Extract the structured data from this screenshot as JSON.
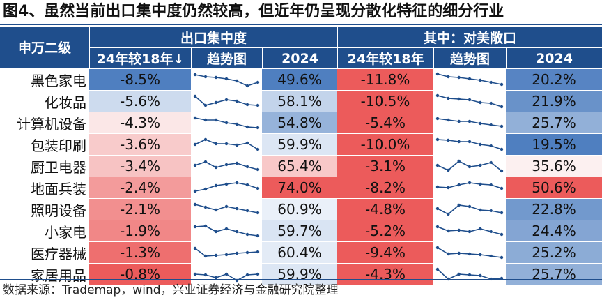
{
  "title": "图4、虽然当前出口集中度仍然较高，但近年仍呈现分散化特征的细分行业",
  "source": "数据来源：Trademap，wind，兴业证券经济与金融研究院整理",
  "header": {
    "corner": "申万二级",
    "group1": "出口集中度",
    "group2": "其中：对美敞口",
    "col_change1": "24年较18年↓",
    "col_trend1": "趋势图",
    "col_2024_1": "2024",
    "col_change2": "24年较18年",
    "col_trend2": "趋势图",
    "col_2024_2": "2024"
  },
  "chart_data": {
    "type": "table",
    "colors": {
      "header": "#1f4e8c",
      "negative_scale": [
        "#4f7fc0",
        "#f6f9fd"
      ],
      "positive_scale": [
        "#fdf5f5",
        "#ec5b5b"
      ],
      "sparkline": "#1f4e8c"
    },
    "rows": [
      {
        "name": "黑色家电",
        "change1": "-8.5%",
        "val1": "49.6%",
        "change2": "-11.8%",
        "val2": "20.2%",
        "c1": -8.5,
        "v1": 49.6,
        "c2": -11.8,
        "v2": 20.2,
        "trend1": [
          0.15,
          0.3,
          0.35,
          0.45,
          0.6,
          0.95,
          0.7
        ],
        "trend2": [
          0.1,
          0.3,
          0.35,
          0.45,
          0.55,
          0.7,
          0.85
        ]
      },
      {
        "name": "化妆品",
        "change1": "-5.6%",
        "val1": "58.1%",
        "change2": "-10.5%",
        "val2": "21.9%",
        "c1": -5.6,
        "v1": 58.1,
        "c2": -10.5,
        "v2": 21.9,
        "trend1": [
          0.15,
          0.8,
          0.6,
          0.4,
          0.5,
          0.75,
          0.8
        ],
        "trend2": [
          0.1,
          0.3,
          0.35,
          0.4,
          0.6,
          0.65,
          0.9
        ]
      },
      {
        "name": "计算机设备",
        "change1": "-4.3%",
        "val1": "54.8%",
        "change2": "-5.4%",
        "val2": "25.7%",
        "c1": -4.3,
        "v1": 54.8,
        "c2": -5.4,
        "v2": 25.7,
        "trend1": [
          0.15,
          0.3,
          0.3,
          0.5,
          0.6,
          0.8,
          0.85
        ],
        "trend2": [
          0.2,
          0.3,
          0.4,
          0.4,
          0.55,
          0.65,
          0.75
        ]
      },
      {
        "name": "包装印刷",
        "change1": "-3.6%",
        "val1": "59.9%",
        "change2": "-10.0%",
        "val2": "19.5%",
        "c1": -3.6,
        "v1": 59.9,
        "c2": -10.0,
        "v2": 19.5,
        "trend1": [
          0.5,
          0.15,
          0.45,
          0.45,
          0.55,
          0.4,
          0.85
        ],
        "trend2": [
          0.15,
          0.2,
          0.3,
          0.3,
          0.5,
          0.6,
          0.85
        ]
      },
      {
        "name": "厨卫电器",
        "change1": "-3.4%",
        "val1": "65.4%",
        "change2": "-3.1%",
        "val2": "35.6%",
        "c1": -3.4,
        "v1": 65.4,
        "c2": -3.1,
        "v2": 35.6,
        "trend1": [
          0.45,
          0.2,
          0.6,
          0.4,
          0.3,
          0.55,
          0.75
        ],
        "trend2": [
          0.45,
          0.8,
          0.15,
          0.55,
          0.45,
          0.25,
          0.85
        ]
      },
      {
        "name": "地面兵装",
        "change1": "-2.4%",
        "val1": "74.0%",
        "change2": "-8.2%",
        "val2": "50.6%",
        "c1": -2.4,
        "v1": 74.0,
        "c2": -8.2,
        "v2": 50.6,
        "trend1": [
          0.75,
          0.6,
          0.35,
          0.25,
          0.15,
          0.3,
          0.55
        ],
        "trend2": [
          0.45,
          0.5,
          0.3,
          0.15,
          0.25,
          0.3,
          0.55
        ]
      },
      {
        "name": "照明设备",
        "change1": "-2.1%",
        "val1": "60.9%",
        "change2": "-4.8%",
        "val2": "22.8%",
        "c1": -2.1,
        "v1": 60.9,
        "c2": -4.8,
        "v2": 22.8,
        "trend1": [
          0.15,
          0.35,
          0.55,
          0.3,
          0.45,
          0.6,
          0.75
        ],
        "trend2": [
          0.45,
          0.85,
          0.2,
          0.3,
          0.55,
          0.6,
          0.75
        ]
      },
      {
        "name": "小家电",
        "change1": "-1.9%",
        "val1": "59.7%",
        "change2": "-5.2%",
        "val2": "24.4%",
        "c1": -1.9,
        "v1": 59.7,
        "c2": -5.2,
        "v2": 24.4,
        "trend1": [
          0.2,
          0.15,
          0.55,
          0.35,
          0.55,
          0.75,
          0.85
        ],
        "trend2": [
          0.2,
          0.5,
          0.45,
          0.55,
          0.35,
          0.55,
          0.75
        ]
      },
      {
        "name": "医疗器械",
        "change1": "-1.3%",
        "val1": "60.4%",
        "change2": "-9.4%",
        "val2": "25.2%",
        "c1": -1.3,
        "v1": 60.4,
        "c2": -9.4,
        "v2": 25.2,
        "trend1": [
          0.2,
          0.75,
          0.7,
          0.65,
          0.55,
          0.5,
          0.45
        ],
        "trend2": [
          0.15,
          0.6,
          0.55,
          0.6,
          0.65,
          0.75,
          0.85
        ]
      },
      {
        "name": "家居用品",
        "change1": "-0.8%",
        "val1": "59.9%",
        "change2": "-4.3%",
        "val2": "25.7%",
        "c1": -0.8,
        "v1": 59.9,
        "c2": -4.3,
        "v2": 25.7,
        "trend1": [
          0.5,
          0.55,
          0.75,
          0.5,
          0.95,
          0.55,
          0.5
        ],
        "trend2": [
          0.15,
          0.85,
          0.5,
          0.55,
          0.6,
          0.85,
          0.8
        ]
      }
    ]
  }
}
